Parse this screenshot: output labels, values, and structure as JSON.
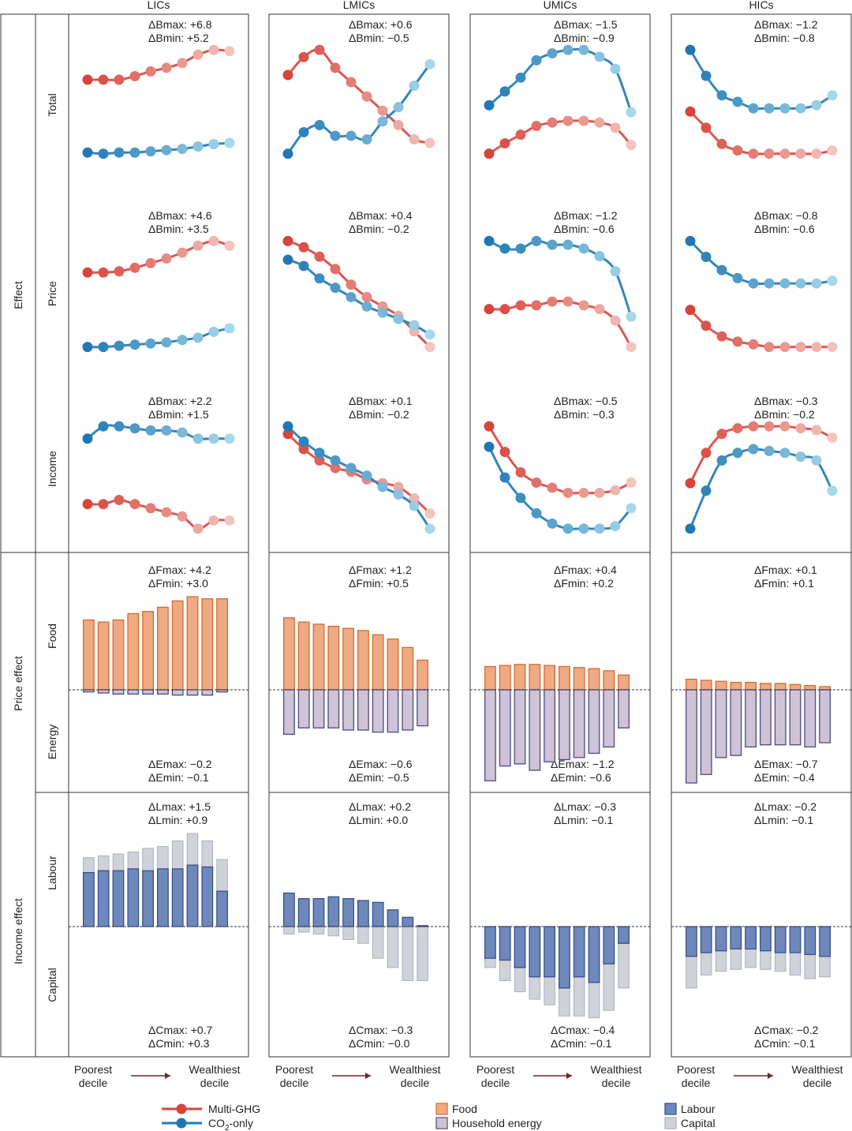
{
  "column_titles": [
    "LICs",
    "LMICs",
    "UMICs",
    "HICs"
  ],
  "row_group_labels": {
    "effect": "Effect",
    "price_effect": "Price effect",
    "income_effect": "Income effect"
  },
  "row_labels": {
    "total": "Total",
    "price": "Price",
    "income": "Income",
    "food": "Food",
    "energy": "Energy",
    "labour": "Labour",
    "capital": "Capital"
  },
  "x_axis": {
    "left": "Poorest decile",
    "right": "Wealthiest decile"
  },
  "legend": {
    "multi_ghg": "Multi-GHG",
    "co2_prefix": "CO",
    "co2_sub": "2",
    "co2_suffix": "-only",
    "food": "Food",
    "household_energy": "Household energy",
    "labour": "Labour",
    "capital": "Capital"
  },
  "colors": {
    "multi_ghg_dark": "#d7443a",
    "multi_ghg_light": "#f2c4c0",
    "co2_dark": "#1f78b4",
    "co2_light": "#a6d8ec",
    "food_fill": "#eeaa83",
    "food_stroke": "#d96a2b",
    "energy_fill": "#cfc3d8",
    "energy_stroke": "#4e4a82",
    "labour_fill": "#6f88bb",
    "labour_stroke": "#2e4b8a",
    "capital_fill": "#cfd2d8",
    "capital_stroke": "#aab0ba"
  },
  "chart_data": [
    {
      "type": "line",
      "row": "Total",
      "x": [
        1,
        2,
        3,
        4,
        5,
        6,
        7,
        8,
        9,
        10
      ],
      "panels": [
        {
          "group": "LICs",
          "annotation": [
            "ΔBmax: +6.8",
            "ΔBmin: +5.2"
          ],
          "series": [
            {
              "name": "Multi-GHG",
              "values": [
                0.0,
                0.0,
                0.0,
                0.3,
                0.7,
                1.0,
                1.4,
                2.1,
                2.5,
                2.4
              ]
            },
            {
              "name": "CO2-only",
              "values": [
                -6.1,
                -6.2,
                -6.1,
                -6.1,
                -6.0,
                -5.9,
                -5.8,
                -5.6,
                -5.4,
                -5.3
              ]
            }
          ]
        },
        {
          "group": "LMICs",
          "annotation": [
            "ΔBmax: +0.6",
            "ΔBmin: −0.5"
          ],
          "series": [
            {
              "name": "Multi-GHG",
              "values": [
                0.3,
                0.8,
                1.0,
                0.5,
                0.1,
                -0.3,
                -0.7,
                -1.1,
                -1.5,
                -1.6
              ]
            },
            {
              "name": "CO2-only",
              "values": [
                -1.9,
                -1.3,
                -1.1,
                -1.4,
                -1.4,
                -1.5,
                -1.0,
                -0.6,
                0.0,
                0.6
              ]
            }
          ]
        },
        {
          "group": "UMICs",
          "annotation": [
            "ΔBmax: −1.5",
            "ΔBmin: −0.9"
          ],
          "series": [
            {
              "name": "Multi-GHG",
              "values": [
                -2.8,
                -2.2,
                -1.7,
                -1.2,
                -1.0,
                -0.9,
                -0.9,
                -1.0,
                -1.3,
                -2.3
              ]
            },
            {
              "name": "CO2-only",
              "values": [
                0.0,
                0.8,
                1.6,
                2.6,
                3.0,
                3.2,
                3.2,
                2.8,
                2.1,
                -0.4
              ]
            }
          ]
        },
        {
          "group": "HICs",
          "annotation": [
            "ΔBmax: −1.2",
            "ΔBmin: −0.8"
          ],
          "series": [
            {
              "name": "Multi-GHG",
              "values": [
                -1.1,
                -1.6,
                -2.1,
                -2.3,
                -2.4,
                -2.4,
                -2.4,
                -2.4,
                -2.4,
                -2.3
              ]
            },
            {
              "name": "CO2-only",
              "values": [
                0.8,
                0.0,
                -0.6,
                -0.8,
                -1.0,
                -1.0,
                -1.0,
                -1.0,
                -0.9,
                -0.6
              ]
            }
          ]
        }
      ]
    },
    {
      "type": "line",
      "row": "Price",
      "x": [
        1,
        2,
        3,
        4,
        5,
        6,
        7,
        8,
        9,
        10
      ],
      "panels": [
        {
          "group": "LICs",
          "annotation": [
            "ΔBmax: +4.6",
            "ΔBmin: +3.5"
          ],
          "series": [
            {
              "name": "Multi-GHG",
              "values": [
                0.0,
                0.0,
                0.05,
                0.2,
                0.4,
                0.6,
                0.85,
                1.15,
                1.35,
                1.15
              ]
            },
            {
              "name": "CO2-only",
              "values": [
                -3.2,
                -3.2,
                -3.15,
                -3.1,
                -3.05,
                -3.0,
                -2.9,
                -2.8,
                -2.55,
                -2.4
              ]
            }
          ]
        },
        {
          "group": "LMICs",
          "annotation": [
            "ΔBmax: +0.4",
            "ΔBmin: −0.2"
          ],
          "series": [
            {
              "name": "Multi-GHG",
              "values": [
                0.3,
                0.1,
                -0.2,
                -0.6,
                -1.1,
                -1.5,
                -1.8,
                -2.1,
                -2.6,
                -3.1
              ]
            },
            {
              "name": "CO2-only",
              "values": [
                -0.3,
                -0.5,
                -0.9,
                -1.2,
                -1.5,
                -1.8,
                -2.0,
                -2.2,
                -2.4,
                -2.7
              ]
            }
          ]
        },
        {
          "group": "UMICs",
          "annotation": [
            "ΔBmax: −1.2",
            "ΔBmin: −0.6"
          ],
          "series": [
            {
              "name": "Multi-GHG",
              "values": [
                -1.4,
                -1.4,
                -1.3,
                -1.3,
                -1.2,
                -1.2,
                -1.3,
                -1.4,
                -1.7,
                -2.4
              ]
            },
            {
              "name": "CO2-only",
              "values": [
                0.4,
                0.2,
                0.2,
                0.4,
                0.3,
                0.3,
                0.2,
                0.0,
                -0.4,
                -1.6
              ]
            }
          ]
        },
        {
          "group": "HICs",
          "annotation": [
            "ΔBmax: −0.8",
            "ΔBmin: −0.6"
          ],
          "series": [
            {
              "name": "Multi-GHG",
              "values": [
                -0.3,
                -0.6,
                -0.8,
                -0.9,
                -0.95,
                -1.0,
                -1.0,
                -1.0,
                -1.0,
                -1.0
              ]
            },
            {
              "name": "CO2-only",
              "values": [
                1.0,
                0.7,
                0.45,
                0.3,
                0.2,
                0.2,
                0.2,
                0.2,
                0.2,
                0.25
              ]
            }
          ]
        }
      ]
    },
    {
      "type": "line",
      "row": "Income",
      "x": [
        1,
        2,
        3,
        4,
        5,
        6,
        7,
        8,
        9,
        10
      ],
      "panels": [
        {
          "group": "LICs",
          "annotation": [
            "ΔBmax: +2.2",
            "ΔBmin: +1.5"
          ],
          "series": [
            {
              "name": "Multi-GHG",
              "values": [
                -1.6,
                -1.6,
                -1.5,
                -1.6,
                -1.7,
                -1.8,
                -1.9,
                -2.2,
                -2.0,
                -2.0
              ]
            },
            {
              "name": "CO2-only",
              "values": [
                0.0,
                0.3,
                0.3,
                0.25,
                0.2,
                0.2,
                0.15,
                0.0,
                0.0,
                0.0
              ]
            }
          ]
        },
        {
          "group": "LMICs",
          "annotation": [
            "ΔBmax: +0.1",
            "ΔBmin: −0.2"
          ],
          "series": [
            {
              "name": "Multi-GHG",
              "values": [
                0.0,
                -0.4,
                -0.7,
                -0.9,
                -1.0,
                -1.2,
                -1.3,
                -1.4,
                -1.7,
                -2.1
              ]
            },
            {
              "name": "CO2-only",
              "values": [
                0.2,
                -0.2,
                -0.5,
                -0.7,
                -0.9,
                -1.1,
                -1.4,
                -1.6,
                -1.9,
                -2.5
              ]
            }
          ]
        },
        {
          "group": "UMICs",
          "annotation": [
            "ΔBmax: −0.5",
            "ΔBmin: −0.3"
          ],
          "series": [
            {
              "name": "Multi-GHG",
              "values": [
                0.0,
                -0.5,
                -0.9,
                -1.1,
                -1.2,
                -1.3,
                -1.3,
                -1.3,
                -1.25,
                -1.1
              ]
            },
            {
              "name": "CO2-only",
              "values": [
                -0.4,
                -1.0,
                -1.4,
                -1.7,
                -1.9,
                -2.0,
                -2.0,
                -2.0,
                -1.95,
                -1.6
              ]
            }
          ]
        },
        {
          "group": "HICs",
          "annotation": [
            "ΔBmax: −0.3",
            "ΔBmin: −0.2"
          ],
          "series": [
            {
              "name": "Multi-GHG",
              "values": [
                -1.3,
                -0.5,
                0.0,
                0.15,
                0.2,
                0.2,
                0.2,
                0.15,
                0.1,
                -0.1
              ]
            },
            {
              "name": "CO2-only",
              "values": [
                -2.5,
                -1.5,
                -0.7,
                -0.5,
                -0.4,
                -0.45,
                -0.5,
                -0.6,
                -0.7,
                -1.5
              ]
            }
          ]
        }
      ]
    },
    {
      "type": "bar",
      "row": "Price effect (Food / Energy)",
      "categories": [
        1,
        2,
        3,
        4,
        5,
        6,
        7,
        8,
        9,
        10
      ],
      "panels": [
        {
          "group": "LICs",
          "annotation_top": [
            "ΔFmax: +4.2",
            "ΔFmin: +3.0"
          ],
          "annotation_bottom": [
            "ΔEmax: −0.2",
            "ΔEmin: −0.1"
          ],
          "series": [
            {
              "name": "Food",
              "values": [
                3.3,
                3.2,
                3.3,
                3.6,
                3.7,
                3.9,
                4.2,
                4.4,
                4.3,
                4.3
              ]
            },
            {
              "name": "Household energy",
              "values": [
                -0.1,
                -0.15,
                -0.2,
                -0.2,
                -0.2,
                -0.2,
                -0.25,
                -0.25,
                -0.25,
                -0.1
              ]
            }
          ]
        },
        {
          "group": "LMICs",
          "annotation_top": [
            "ΔFmax: +1.2",
            "ΔFmin: +0.5"
          ],
          "annotation_bottom": [
            "ΔEmax: −0.6",
            "ΔEmin: −0.5"
          ],
          "series": [
            {
              "name": "Food",
              "values": [
                3.4,
                3.2,
                3.1,
                3.0,
                2.9,
                2.8,
                2.6,
                2.4,
                2.0,
                1.4
              ]
            },
            {
              "name": "Household energy",
              "values": [
                -2.1,
                -1.8,
                -1.8,
                -1.8,
                -1.9,
                -1.9,
                -2.0,
                -2.0,
                -1.9,
                -1.7
              ]
            }
          ]
        },
        {
          "group": "UMICs",
          "annotation_top": [
            "ΔFmax: +0.4",
            "ΔFmin: +0.2"
          ],
          "annotation_bottom": [
            "ΔEmax: −1.2",
            "ΔEmin: −0.6"
          ],
          "series": [
            {
              "name": "Food",
              "values": [
                1.1,
                1.15,
                1.2,
                1.2,
                1.15,
                1.1,
                1.05,
                1.0,
                0.9,
                0.7
              ]
            },
            {
              "name": "Household energy",
              "values": [
                -4.3,
                -3.6,
                -3.5,
                -3.8,
                -3.4,
                -3.3,
                -3.2,
                -3.0,
                -2.7,
                -1.8
              ]
            }
          ]
        },
        {
          "group": "HICs",
          "annotation_top": [
            "ΔFmax: +0.1",
            "ΔFmin: +0.1"
          ],
          "annotation_bottom": [
            "ΔEmax: −0.7",
            "ΔEmin: −0.4"
          ],
          "series": [
            {
              "name": "Food",
              "values": [
                0.5,
                0.45,
                0.4,
                0.35,
                0.35,
                0.3,
                0.3,
                0.25,
                0.2,
                0.15
              ]
            },
            {
              "name": "Household energy",
              "values": [
                -4.4,
                -4.0,
                -3.2,
                -3.1,
                -2.7,
                -2.6,
                -2.6,
                -2.6,
                -2.7,
                -2.5
              ]
            }
          ]
        }
      ]
    },
    {
      "type": "bar",
      "row": "Income effect (Labour / Capital)",
      "categories": [
        1,
        2,
        3,
        4,
        5,
        6,
        7,
        8,
        9,
        10
      ],
      "panels": [
        {
          "group": "LICs",
          "annotation_top": [
            "ΔLmax: +1.5",
            "ΔLmin: +0.9"
          ],
          "annotation_bottom": [
            "ΔCmax: +0.7",
            "ΔCmin: +0.3"
          ],
          "series": [
            {
              "name": "Labour",
              "values": [
                2.9,
                3.0,
                3.0,
                3.1,
                3.0,
                3.1,
                3.1,
                3.3,
                3.2,
                1.9
              ]
            },
            {
              "name": "Capital",
              "values": [
                3.7,
                3.8,
                3.9,
                4.0,
                4.2,
                4.3,
                4.6,
                5.0,
                4.6,
                3.6
              ]
            }
          ]
        },
        {
          "group": "LMICs",
          "annotation_top": [
            "ΔLmax: +0.2",
            "ΔLmin: +0.0"
          ],
          "annotation_bottom": [
            "ΔCmax: −0.3",
            "ΔCmin: −0.0"
          ],
          "series": [
            {
              "name": "Labour",
              "values": [
                1.8,
                1.5,
                1.5,
                1.6,
                1.5,
                1.4,
                1.3,
                0.9,
                0.5,
                0.05
              ]
            },
            {
              "name": "Capital",
              "values": [
                -0.4,
                -0.3,
                -0.4,
                -0.5,
                -0.7,
                -0.9,
                -1.7,
                -2.2,
                -2.9,
                -2.9
              ]
            }
          ]
        },
        {
          "group": "UMICs",
          "annotation_top": [
            "ΔLmax: −0.3",
            "ΔLmin: −0.1"
          ],
          "annotation_bottom": [
            "ΔCmax: −0.4",
            "ΔCmin: −0.1"
          ],
          "series": [
            {
              "name": "Labour",
              "values": [
                -1.7,
                -1.8,
                -2.2,
                -2.7,
                -2.7,
                -3.3,
                -2.7,
                -3.0,
                -2.0,
                -0.9
              ]
            },
            {
              "name": "Capital",
              "values": [
                -2.2,
                -2.9,
                -3.5,
                -3.9,
                -4.2,
                -4.8,
                -4.8,
                -4.9,
                -4.5,
                -3.3
              ]
            }
          ]
        },
        {
          "group": "HICs",
          "annotation_top": [
            "ΔLmax: −0.2",
            "ΔLmin: −0.1"
          ],
          "annotation_bottom": [
            "ΔCmax: −0.2",
            "ΔCmin: −0.1"
          ],
          "series": [
            {
              "name": "Labour",
              "values": [
                -1.6,
                -1.4,
                -1.3,
                -1.2,
                -1.2,
                -1.3,
                -1.4,
                -1.4,
                -1.5,
                -1.6
              ]
            },
            {
              "name": "Capital",
              "values": [
                -3.3,
                -2.6,
                -2.4,
                -2.3,
                -2.2,
                -2.3,
                -2.4,
                -2.6,
                -2.8,
                -2.7
              ]
            }
          ]
        }
      ]
    }
  ]
}
